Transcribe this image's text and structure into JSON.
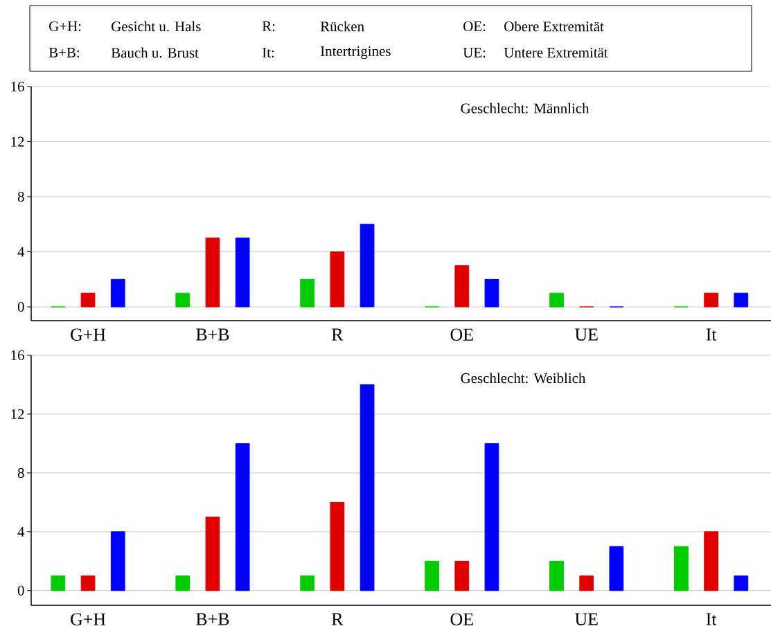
{
  "chart_data": [
    {
      "type": "other",
      "annotations": [
        "G+H:",
        "Gesicht u. Hals",
        "R:",
        "Rücken",
        "OE:",
        "Obere Extremität",
        "B+B:",
        "Bauch u. Brust",
        "It:",
        "Intertrigines",
        "UE:",
        "Untere Extremität"
      ]
    },
    {
      "type": "bar",
      "categories": [
        "G+H",
        "B+B",
        "R",
        "OE",
        "UE",
        "It"
      ],
      "ylim": [
        -1,
        16
      ],
      "yticks": [
        0,
        4,
        8,
        12,
        16
      ],
      "grid": "y",
      "annotations": [
        "Geschlecht:  Männlich"
      ],
      "series": [
        {
          "color": "#00cc00",
          "values": [
            0,
            1,
            2,
            0,
            1,
            0
          ]
        },
        {
          "color": "#e00000",
          "values": [
            1,
            5,
            4,
            3,
            0,
            1
          ]
        },
        {
          "color": "#0000ff",
          "values": [
            2,
            5,
            6,
            2,
            0,
            1
          ]
        }
      ]
    },
    {
      "type": "bar",
      "categories": [
        "G+H",
        "B+B",
        "R",
        "OE",
        "UE",
        "It"
      ],
      "ylim": [
        -1,
        16
      ],
      "yticks": [
        0,
        4,
        8,
        12,
        16
      ],
      "grid": "y",
      "annotations": [
        "Geschlecht:  Weiblich"
      ],
      "series": [
        {
          "color": "#00cc00",
          "values": [
            1,
            1,
            1,
            2,
            2,
            3
          ]
        },
        {
          "color": "#e00000",
          "values": [
            1,
            5,
            6,
            2,
            1,
            4
          ]
        },
        {
          "color": "#0000ff",
          "values": [
            4,
            10,
            14,
            10,
            3,
            1
          ]
        }
      ]
    }
  ]
}
